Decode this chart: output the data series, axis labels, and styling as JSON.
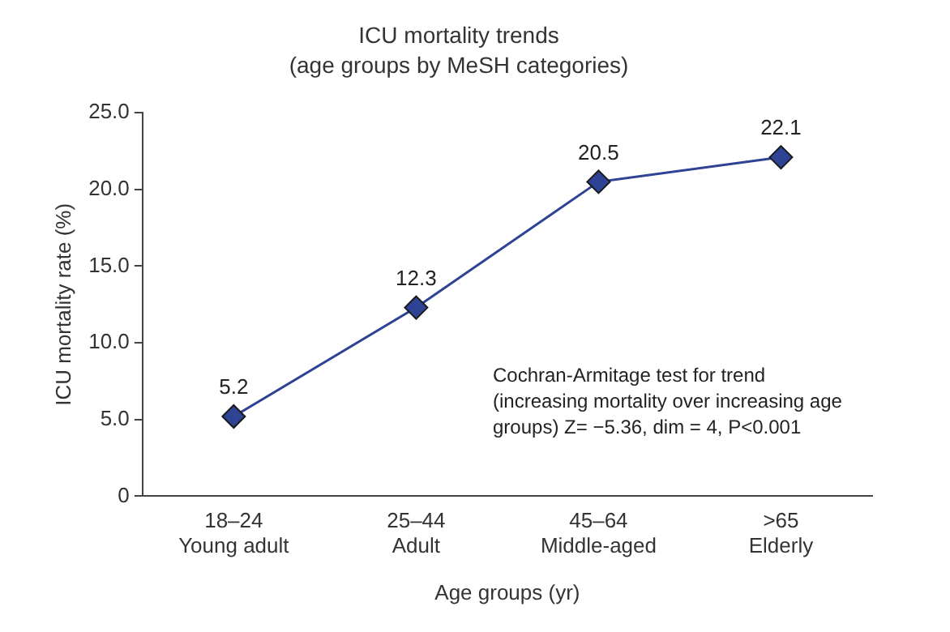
{
  "chart_data": {
    "type": "line",
    "title": "ICU mortality trends",
    "subtitle": "(age groups by MeSH categories)",
    "xlabel": "Age groups (yr)",
    "ylabel": "ICU mortality rate (%)",
    "categories": [
      "18–24\nYoung adult",
      "25–44\nAdult",
      "45–64\nMiddle-aged",
      ">65\nElderly"
    ],
    "series": [
      {
        "color": "#2e4393",
        "values": [
          5.2,
          12.3,
          20.5,
          22.1
        ]
      }
    ],
    "ylim": [
      0,
      25
    ],
    "yticks": [
      {
        "value": 0,
        "label": "0"
      },
      {
        "value": 5,
        "label": "5.0"
      },
      {
        "value": 10,
        "label": "10.0"
      },
      {
        "value": 15,
        "label": "15.0"
      },
      {
        "value": 20,
        "label": "20.0"
      },
      {
        "value": 25,
        "label": "25.0"
      }
    ],
    "marker": "diamond",
    "line_style": "solid",
    "grid": false,
    "legend": false,
    "data_labels": true,
    "annotations": [
      "Cochran-Armitage test for trend (increasing mortality over increasing age groups) Z= −5.36, dim = 4, P<0.001"
    ]
  }
}
